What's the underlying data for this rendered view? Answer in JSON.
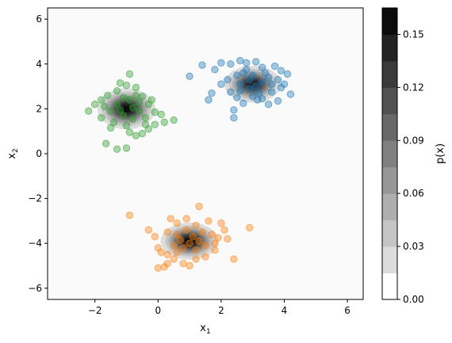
{
  "chart_data": {
    "type": "scatter",
    "xlabel": "x",
    "xlabel_sub": "1",
    "ylabel": "x",
    "ylabel_sub": "2",
    "xlim": [
      -3.5,
      6.5
    ],
    "ylim": [
      -6.5,
      6.5
    ],
    "xticks": [
      "−2",
      "0",
      "2",
      "4",
      "6"
    ],
    "xtick_values": [
      -2,
      0,
      2,
      4,
      6
    ],
    "yticks": [
      "−6",
      "−4",
      "−2",
      "0",
      "2",
      "4",
      "6"
    ],
    "ytick_values": [
      -6,
      -4,
      -2,
      0,
      2,
      4,
      6
    ],
    "grid": false,
    "colorbar": {
      "label": "p(x)",
      "ticks": [
        "0.00",
        "0.03",
        "0.06",
        "0.09",
        "0.12",
        "0.15"
      ],
      "tick_values": [
        0.0,
        0.03,
        0.06,
        0.09,
        0.12,
        0.15
      ],
      "range": [
        0.0,
        0.165
      ],
      "levels": 11,
      "colormap": "Greys"
    },
    "density_components": [
      {
        "mean": [
          3.0,
          3.1
        ],
        "std": [
          0.42,
          0.38
        ],
        "peak": 0.15
      },
      {
        "mean": [
          -1.0,
          2.0
        ],
        "std": [
          0.42,
          0.42
        ],
        "peak": 0.16
      },
      {
        "mean": [
          1.0,
          -3.9
        ],
        "std": [
          0.42,
          0.38
        ],
        "peak": 0.16
      }
    ],
    "series": [
      {
        "color": "#1f77b4",
        "points": [
          [
            1.0,
            3.45
          ],
          [
            1.4,
            3.95
          ],
          [
            1.8,
            3.75
          ],
          [
            2.0,
            4.05
          ],
          [
            2.3,
            4.0
          ],
          [
            2.6,
            4.15
          ],
          [
            2.8,
            4.05
          ],
          [
            3.1,
            4.1
          ],
          [
            3.3,
            3.85
          ],
          [
            3.7,
            3.9
          ],
          [
            3.9,
            3.7
          ],
          [
            4.1,
            3.55
          ],
          [
            4.0,
            3.1
          ],
          [
            3.8,
            3.3
          ],
          [
            4.2,
            2.65
          ],
          [
            3.9,
            2.95
          ],
          [
            3.6,
            2.75
          ],
          [
            3.8,
            2.35
          ],
          [
            3.5,
            2.2
          ],
          [
            3.3,
            2.45
          ],
          [
            3.0,
            2.55
          ],
          [
            2.7,
            2.25
          ],
          [
            2.4,
            1.95
          ],
          [
            2.4,
            1.6
          ],
          [
            2.6,
            2.8
          ],
          [
            2.3,
            2.75
          ],
          [
            1.6,
            2.4
          ],
          [
            1.7,
            2.7
          ],
          [
            2.0,
            3.1
          ],
          [
            2.2,
            3.3
          ],
          [
            2.5,
            3.5
          ],
          [
            2.7,
            3.6
          ],
          [
            2.9,
            3.3
          ],
          [
            3.1,
            3.0
          ],
          [
            3.3,
            3.2
          ],
          [
            3.5,
            3.4
          ],
          [
            2.9,
            2.9
          ],
          [
            3.2,
            2.7
          ],
          [
            2.6,
            3.1
          ],
          [
            3.4,
            3.6
          ],
          [
            2.8,
            3.75
          ],
          [
            3.0,
            3.5
          ],
          [
            3.6,
            3.1
          ],
          [
            2.5,
            2.5
          ],
          [
            3.15,
            2.4
          ]
        ]
      },
      {
        "color": "#2ca02c",
        "points": [
          [
            -2.2,
            1.9
          ],
          [
            -2.0,
            2.2
          ],
          [
            -1.8,
            2.4
          ],
          [
            -1.6,
            2.6
          ],
          [
            -1.3,
            2.8
          ],
          [
            -1.2,
            3.15
          ],
          [
            -1.0,
            3.05
          ],
          [
            -0.9,
            3.55
          ],
          [
            -0.7,
            2.95
          ],
          [
            -0.5,
            2.55
          ],
          [
            -0.3,
            2.2
          ],
          [
            -0.1,
            1.85
          ],
          [
            0.1,
            1.75
          ],
          [
            0.5,
            1.5
          ],
          [
            0.2,
            1.4
          ],
          [
            -0.1,
            1.3
          ],
          [
            -0.3,
            1.1
          ],
          [
            -0.5,
            0.9
          ],
          [
            -0.7,
            0.8
          ],
          [
            -0.9,
            0.95
          ],
          [
            -1.0,
            0.25
          ],
          [
            -1.3,
            0.2
          ],
          [
            -1.65,
            0.45
          ],
          [
            -1.5,
            1.15
          ],
          [
            -1.8,
            1.6
          ],
          [
            -1.4,
            1.4
          ],
          [
            -1.1,
            1.7
          ],
          [
            -0.8,
            1.55
          ],
          [
            -0.6,
            1.9
          ],
          [
            -1.3,
            2.2
          ],
          [
            -0.9,
            2.4
          ],
          [
            -0.6,
            2.3
          ],
          [
            -1.1,
            2.5
          ],
          [
            -1.5,
            1.9
          ],
          [
            -0.4,
            1.6
          ],
          [
            -0.8,
            2.05
          ],
          [
            -1.2,
            1.95
          ],
          [
            -1.7,
            2.1
          ],
          [
            -0.2,
            2.4
          ],
          [
            -1.0,
            1.25
          ],
          [
            -0.4,
            1.3
          ],
          [
            -0.7,
            2.6
          ]
        ]
      },
      {
        "color": "#ff7f0e",
        "points": [
          [
            -0.9,
            -2.75
          ],
          [
            -0.3,
            -3.4
          ],
          [
            0.4,
            -2.9
          ],
          [
            0.6,
            -3.1
          ],
          [
            0.9,
            -2.9
          ],
          [
            1.3,
            -2.35
          ],
          [
            1.2,
            -3.2
          ],
          [
            1.6,
            -3.0
          ],
          [
            2.0,
            -3.1
          ],
          [
            2.1,
            -3.4
          ],
          [
            2.2,
            -3.8
          ],
          [
            1.9,
            -3.75
          ],
          [
            2.4,
            -4.7
          ],
          [
            2.9,
            -3.3
          ],
          [
            1.8,
            -4.3
          ],
          [
            1.5,
            -4.6
          ],
          [
            1.2,
            -4.7
          ],
          [
            1.0,
            -5.0
          ],
          [
            0.8,
            -4.9
          ],
          [
            0.5,
            -4.7
          ],
          [
            0.3,
            -4.9
          ],
          [
            0.2,
            -5.05
          ],
          [
            0.0,
            -5.1
          ],
          [
            0.1,
            -4.4
          ],
          [
            0.0,
            -4.2
          ],
          [
            -0.1,
            -3.7
          ],
          [
            0.3,
            -3.5
          ],
          [
            0.6,
            -3.6
          ],
          [
            0.9,
            -3.4
          ],
          [
            1.4,
            -3.5
          ],
          [
            1.7,
            -3.6
          ],
          [
            1.5,
            -4.1
          ],
          [
            1.2,
            -4.3
          ],
          [
            0.8,
            -4.2
          ],
          [
            0.5,
            -4.1
          ],
          [
            0.7,
            -3.85
          ],
          [
            1.1,
            -3.7
          ],
          [
            0.3,
            -4.5
          ],
          [
            1.0,
            -4.0
          ],
          [
            1.3,
            -3.9
          ],
          [
            0.6,
            -4.4
          ],
          [
            1.8,
            -4.0
          ]
        ]
      }
    ]
  }
}
